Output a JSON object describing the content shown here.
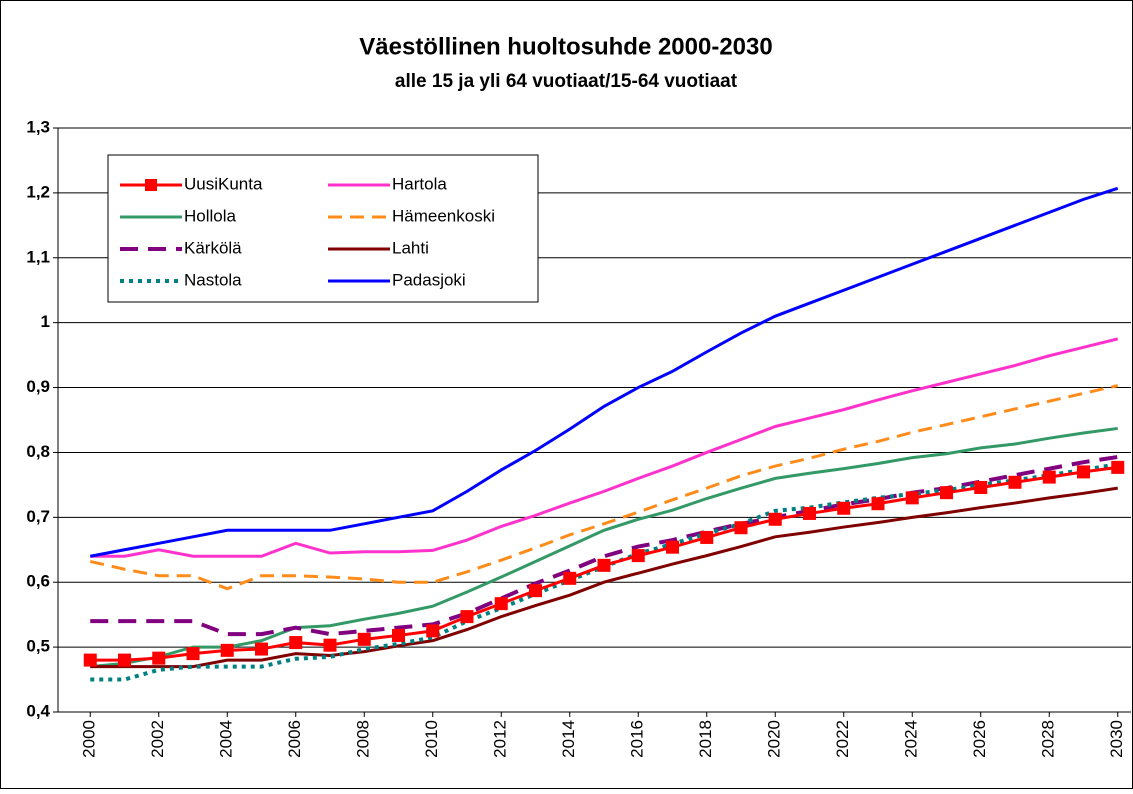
{
  "chart_data": {
    "type": "line",
    "title": "Väestöllinen huoltosuhde 2000-2030",
    "subtitle": "alle 15 ja yli 64 vuotiaat/15-64 vuotiaat",
    "x": [
      2000,
      2001,
      2002,
      2003,
      2004,
      2005,
      2006,
      2007,
      2008,
      2009,
      2010,
      2011,
      2012,
      2013,
      2014,
      2015,
      2016,
      2017,
      2018,
      2019,
      2020,
      2021,
      2022,
      2023,
      2024,
      2025,
      2026,
      2027,
      2028,
      2029,
      2030
    ],
    "xlim": [
      1999,
      2031
    ],
    "xticks": [
      2000,
      2002,
      2004,
      2006,
      2008,
      2010,
      2012,
      2014,
      2016,
      2018,
      2020,
      2022,
      2024,
      2026,
      2028,
      2030
    ],
    "ylim": [
      0.4,
      1.3
    ],
    "yticks": [
      {
        "value": 0.4,
        "label": "0,4"
      },
      {
        "value": 0.5,
        "label": "0,5"
      },
      {
        "value": 0.6,
        "label": "0,6"
      },
      {
        "value": 0.7,
        "label": "0,7"
      },
      {
        "value": 0.8,
        "label": "0,8"
      },
      {
        "value": 0.9,
        "label": "0,9"
      },
      1,
      {
        "value": 1.1,
        "label": "1,1"
      },
      {
        "value": 1.2,
        "label": "1,2"
      },
      {
        "value": 1.3,
        "label": "1,3"
      }
    ],
    "grid": true,
    "legend": "top-left",
    "series": [
      {
        "name": "UusiKunta",
        "color": "#ff0000",
        "style": "solid",
        "marker": "square",
        "values": [
          0.48,
          0.48,
          0.483,
          0.49,
          0.495,
          0.497,
          0.507,
          0.503,
          0.512,
          0.518,
          0.525,
          0.547,
          0.567,
          0.587,
          0.606,
          0.626,
          0.641,
          0.654,
          0.669,
          0.684,
          0.697,
          0.706,
          0.714,
          0.721,
          0.73,
          0.738,
          0.746,
          0.754,
          0.762,
          0.77,
          0.777
        ]
      },
      {
        "name": "Hartola",
        "color": "#ff33cc",
        "style": "solid",
        "values": [
          0.64,
          0.64,
          0.65,
          0.64,
          0.64,
          0.64,
          0.66,
          0.645,
          0.647,
          0.647,
          0.649,
          0.665,
          0.686,
          0.703,
          0.722,
          0.74,
          0.76,
          0.779,
          0.8,
          0.82,
          0.84,
          0.853,
          0.866,
          0.881,
          0.895,
          0.908,
          0.921,
          0.934,
          0.949,
          0.962,
          0.975
        ]
      },
      {
        "name": "Hollola",
        "color": "#339966",
        "style": "solid",
        "values": [
          0.47,
          0.475,
          0.485,
          0.5,
          0.5,
          0.51,
          0.53,
          0.533,
          0.543,
          0.552,
          0.563,
          0.585,
          0.608,
          0.632,
          0.656,
          0.68,
          0.697,
          0.711,
          0.729,
          0.745,
          0.76,
          0.768,
          0.775,
          0.783,
          0.792,
          0.798,
          0.807,
          0.813,
          0.822,
          0.83,
          0.837
        ]
      },
      {
        "name": "Hämeenkoski",
        "color": "#ff8c1a",
        "style": "dashed",
        "values": [
          0.632,
          0.62,
          0.61,
          0.61,
          0.59,
          0.61,
          0.61,
          0.608,
          0.605,
          0.6,
          0.6,
          0.616,
          0.634,
          0.653,
          0.673,
          0.69,
          0.708,
          0.727,
          0.745,
          0.764,
          0.779,
          0.791,
          0.805,
          0.817,
          0.831,
          0.843,
          0.855,
          0.867,
          0.879,
          0.891,
          0.903
        ]
      },
      {
        "name": "Kärkölä",
        "color": "#800080",
        "style": "long-dashed",
        "values": [
          0.54,
          0.54,
          0.54,
          0.54,
          0.52,
          0.52,
          0.53,
          0.52,
          0.525,
          0.53,
          0.535,
          0.552,
          0.575,
          0.598,
          0.618,
          0.64,
          0.655,
          0.665,
          0.678,
          0.69,
          0.7,
          0.71,
          0.72,
          0.728,
          0.738,
          0.745,
          0.755,
          0.765,
          0.775,
          0.785,
          0.793
        ]
      },
      {
        "name": "Lahti",
        "color": "#800000",
        "style": "solid",
        "values": [
          0.47,
          0.47,
          0.47,
          0.47,
          0.48,
          0.48,
          0.49,
          0.487,
          0.493,
          0.502,
          0.51,
          0.527,
          0.547,
          0.564,
          0.58,
          0.6,
          0.614,
          0.628,
          0.641,
          0.655,
          0.67,
          0.677,
          0.685,
          0.692,
          0.7,
          0.707,
          0.715,
          0.722,
          0.73,
          0.737,
          0.745
        ]
      },
      {
        "name": "Nastola",
        "color": "#008080",
        "style": "dotted",
        "values": [
          0.45,
          0.45,
          0.465,
          0.47,
          0.47,
          0.47,
          0.482,
          0.485,
          0.497,
          0.505,
          0.515,
          0.54,
          0.56,
          0.582,
          0.603,
          0.624,
          0.644,
          0.659,
          0.675,
          0.69,
          0.71,
          0.715,
          0.723,
          0.73,
          0.736,
          0.742,
          0.75,
          0.757,
          0.765,
          0.773,
          0.782
        ]
      },
      {
        "name": "Padasjoki",
        "color": "#0000ff",
        "style": "solid",
        "values": [
          0.64,
          0.65,
          0.66,
          0.67,
          0.68,
          0.68,
          0.68,
          0.68,
          0.69,
          0.7,
          0.71,
          0.74,
          0.773,
          0.803,
          0.836,
          0.871,
          0.9,
          0.925,
          0.955,
          0.984,
          1.01,
          1.03,
          1.05,
          1.07,
          1.09,
          1.11,
          1.13,
          1.15,
          1.17,
          1.19,
          1.207
        ]
      }
    ]
  }
}
